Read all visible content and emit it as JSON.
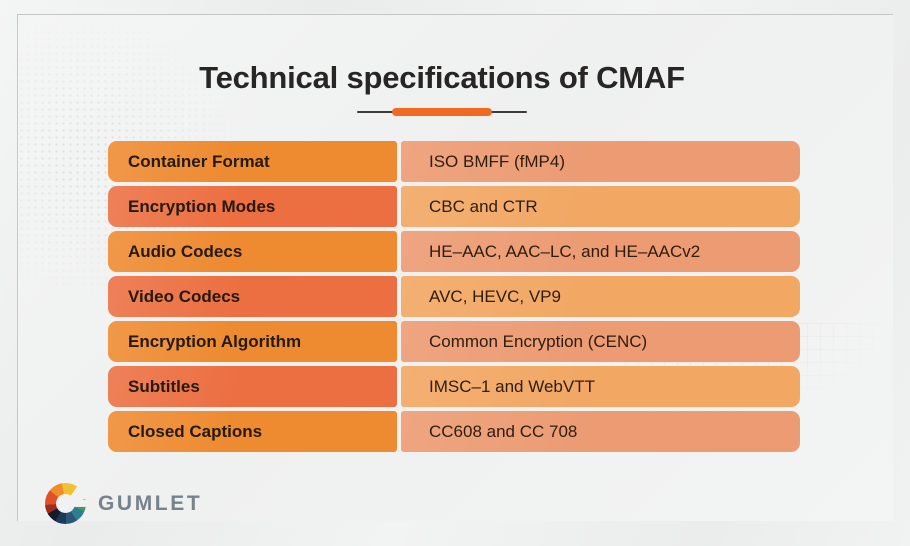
{
  "header": {
    "title": "Technical specifications of CMAF"
  },
  "table": {
    "rows": [
      {
        "label": "Container Format",
        "value": "ISO BMFF (fMP4)"
      },
      {
        "label": "Encryption Modes",
        "value": "CBC and CTR"
      },
      {
        "label": "Audio Codecs",
        "value": "HE–AAC, AAC–LC, and HE–AACv2"
      },
      {
        "label": "Video Codecs",
        "value": "AVC, HEVC, VP9"
      },
      {
        "label": "Encryption Algorithm",
        "value": "Common Encryption (CENC)"
      },
      {
        "label": "Subtitles",
        "value": "IMSC–1 and WebVTT"
      },
      {
        "label": "Closed Captions",
        "value": "CC608 and CC 708"
      }
    ]
  },
  "branding": {
    "wordmark": "GUMLET",
    "icon": "gumlet-color-wheel-icon"
  },
  "colors": {
    "accent": "#f26a21",
    "row-odd-left": "#ee8a30",
    "row-odd-right": "#ec9b72",
    "row-even-left": "#ec6f41",
    "row-even-right": "#f2a763",
    "logo-gray": "#76828c"
  }
}
